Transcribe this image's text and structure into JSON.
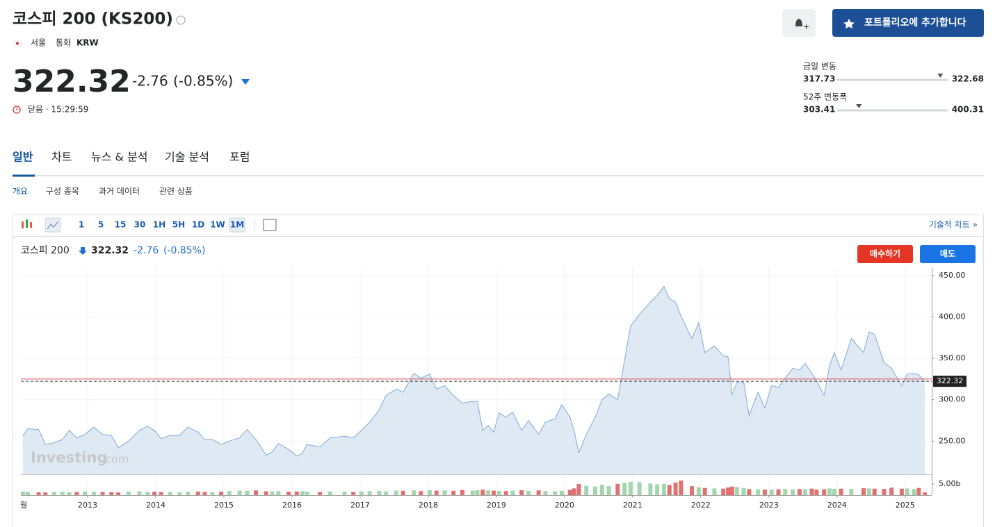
{
  "header": {
    "title": "코스피 200 (KS200)",
    "exchange": "서울",
    "currency_label": "통화",
    "currency": "KRW",
    "price": "322.32",
    "change": "-2.76",
    "change_pct": "(-0.85%)",
    "status": "닫음 · 15:29:59",
    "portfolio_button": "포트폴리오에 추가합니다"
  },
  "ranges": [
    {
      "label": "금일 변동",
      "low": 317.73,
      "high": 322.68
    },
    {
      "label": "52주 변동폭",
      "low": 303.41,
      "high": 400.31
    }
  ],
  "tabs": [
    "일반",
    "차트",
    "뉴스 & 분석",
    "기술 분석",
    "포럼"
  ],
  "subtabs": [
    "개요",
    "구성 종목",
    "과거 데이터",
    "관련 상품"
  ],
  "toolbar": {
    "intervals": [
      "1",
      "5",
      "15",
      "30",
      "1H",
      "5H",
      "1D",
      "1W",
      "1M"
    ],
    "active": "1M",
    "advanced_link": "기술적 차트 »"
  },
  "chart_data": {
    "type": "line",
    "last_price": 322.32,
    "change": -2.76,
    "change_pct": "(-0.85%)",
    "buy": "매수하기",
    "sell": "매도",
    "watermark": "Investing",
    "watermark_suffix": ".com",
    "period_label": "월",
    "x": [
      2012.05,
      2012.12,
      2012.28,
      2012.38,
      2012.51,
      2012.63,
      2012.73,
      2012.84,
      2012.96,
      2013.09,
      2013.22,
      2013.35,
      2013.45,
      2013.6,
      2013.76,
      2013.88,
      2013.98,
      2014.08,
      2014.21,
      2014.35,
      2014.47,
      2014.62,
      2014.72,
      2014.83,
      2014.96,
      2015.08,
      2015.23,
      2015.34,
      2015.47,
      2015.62,
      2015.71,
      2015.8,
      2015.95,
      2016.07,
      2016.15,
      2016.22,
      2016.41,
      2016.56,
      2016.77,
      2016.9,
      2017.02,
      2017.14,
      2017.28,
      2017.38,
      2017.53,
      2017.63,
      2017.79,
      2017.89,
      2018.02,
      2018.12,
      2018.24,
      2018.37,
      2018.5,
      2018.65,
      2018.72,
      2018.8,
      2018.88,
      2018.96,
      2019.04,
      2019.14,
      2019.24,
      2019.37,
      2019.47,
      2019.62,
      2019.72,
      2019.86,
      2019.96,
      2020.08,
      2020.14,
      2020.21,
      2020.32,
      2020.45,
      2020.55,
      2020.65,
      2020.78,
      2020.88,
      2020.97,
      2021.1,
      2021.26,
      2021.36,
      2021.46,
      2021.54,
      2021.63,
      2021.71,
      2021.87,
      2021.97,
      2022.06,
      2022.2,
      2022.33,
      2022.4,
      2022.46,
      2022.53,
      2022.63,
      2022.71,
      2022.84,
      2022.94,
      2023.04,
      2023.14,
      2023.24,
      2023.35,
      2023.45,
      2023.53,
      2023.63,
      2023.7,
      2023.81,
      2023.89,
      2023.96,
      2024.06,
      2024.21,
      2024.39,
      2024.47,
      2024.55,
      2024.69,
      2024.8,
      2024.95,
      2025.03,
      2025.13,
      2025.2,
      2025.29
    ],
    "series": [
      {
        "name": "코스피 200",
        "color": "#7fa9d3",
        "fill": "#dfe9f4",
        "values": [
          256,
          265,
          264,
          246,
          248,
          252,
          263,
          254,
          258,
          267,
          258,
          257,
          242,
          250,
          263,
          268,
          263,
          253,
          257,
          257,
          267,
          261,
          252,
          252,
          246,
          250,
          254,
          264,
          252,
          233,
          237,
          247,
          240,
          232,
          235,
          246,
          243,
          254,
          256,
          254,
          263,
          273,
          288,
          305,
          313,
          309,
          332,
          326,
          331,
          313,
          317,
          305,
          296,
          298,
          298,
          263,
          269,
          261,
          284,
          279,
          285,
          263,
          275,
          258,
          273,
          277,
          294,
          279,
          263,
          236,
          258,
          279,
          300,
          307,
          300,
          347,
          389,
          403,
          418,
          426,
          437,
          422,
          418,
          401,
          374,
          393,
          357,
          365,
          353,
          352,
          306,
          321,
          321,
          281,
          309,
          290,
          317,
          315,
          326,
          338,
          336,
          344,
          332,
          323,
          305,
          341,
          357,
          336,
          374,
          357,
          382,
          379,
          345,
          338,
          317,
          331,
          332,
          330,
          322
        ]
      }
    ],
    "volume": {
      "up_color": "#a3d6ae",
      "down_color": "#e07171",
      "ylim": [
        0,
        7.8
      ],
      "yticks": [
        {
          "value": 5,
          "label": "5.00b"
        }
      ],
      "values": [
        1.6,
        1.5,
        1.3,
        1.2,
        1.4,
        1.5,
        1.3,
        1.4,
        1.6,
        1.5,
        1.4,
        1.3,
        1.2,
        1.6,
        1.7,
        1.4,
        1.5,
        1.3,
        1.4,
        1.2,
        1.5,
        1.6,
        1.4,
        1.3,
        1.5,
        1.8,
        2.0,
        1.9,
        2.1,
        1.7,
        1.6,
        1.8,
        1.5,
        1.6,
        1.7,
        1.5,
        1.4,
        1.6,
        1.5,
        1.4,
        1.6,
        1.8,
        1.9,
        1.7,
        2.0,
        1.9,
        2.1,
        1.8,
        2.2,
        2.0,
        2.1,
        1.9,
        2.3,
        2.0,
        2.2,
        2.4,
        2.1,
        2.0,
        1.9,
        1.8,
        2.0,
        2.2,
        1.9,
        2.1,
        1.8,
        1.7,
        1.9,
        2.3,
        3.0,
        5.0,
        4.2,
        3.8,
        4.6,
        4.0,
        5.0,
        5.5,
        6.0,
        5.8,
        5.2,
        4.8,
        5.0,
        4.5,
        5.6,
        6.5,
        4.0,
        3.5,
        3.2,
        3.0,
        2.9,
        3.4,
        3.8,
        3.6,
        3.2,
        2.7,
        2.6,
        2.5,
        2.4,
        2.6,
        2.8,
        2.5,
        2.7,
        2.6,
        2.9,
        2.4,
        2.6,
        3.0,
        2.8,
        2.9,
        2.7,
        3.1,
        3.0,
        2.9,
        2.8,
        3.3,
        2.9,
        3.0,
        2.7,
        3.2,
        1.2
      ]
    },
    "xlim": [
      2012.02,
      2025.39
    ],
    "xticks": [
      2013,
      2014,
      2015,
      2016,
      2017,
      2018,
      2019,
      2020,
      2021,
      2022,
      2023,
      2024,
      2025
    ],
    "ylim": [
      210,
      460
    ],
    "yticks": [
      {
        "value": 250,
        "label": "250.00"
      },
      {
        "value": 300,
        "label": "300.00"
      },
      {
        "value": 350,
        "label": "350.00"
      },
      {
        "value": 400,
        "label": "400.00"
      },
      {
        "value": 450,
        "label": "450.00"
      }
    ],
    "grid": true
  }
}
